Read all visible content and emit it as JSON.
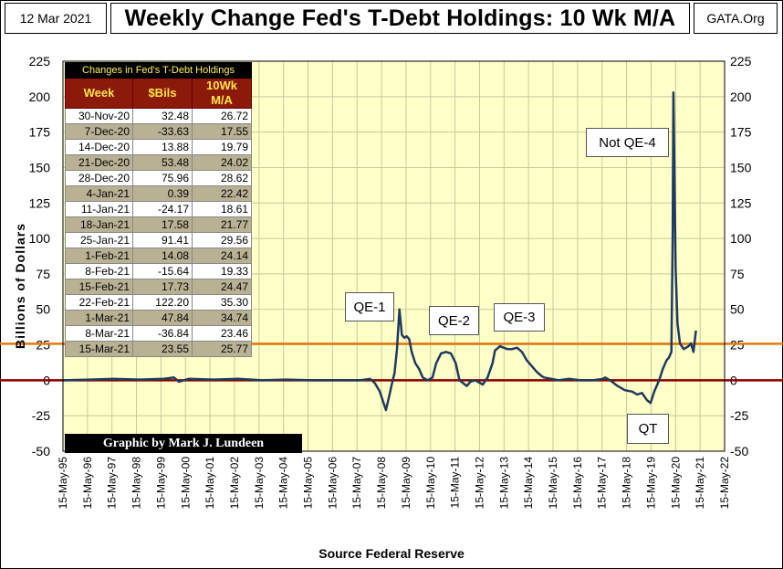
{
  "header": {
    "date": "12 Mar 2021",
    "title": "Weekly Change Fed's T-Debt Holdings: 10 Wk M/A",
    "source_site": "GATA.Org"
  },
  "footer": {
    "source": "Source Federal Reserve",
    "credit": "Graphic by Mark J. Lundeen"
  },
  "table": {
    "caption": "Changes in Fed's T-Debt Holdings",
    "headers": [
      "Week",
      "$Bils",
      "10Wk M/A"
    ],
    "rows": [
      [
        "30-Nov-20",
        "32.48",
        "26.72"
      ],
      [
        "7-Dec-20",
        "-33.63",
        "17.55"
      ],
      [
        "14-Dec-20",
        "13.88",
        "19.79"
      ],
      [
        "21-Dec-20",
        "53.48",
        "24.02"
      ],
      [
        "28-Dec-20",
        "75.96",
        "28.62"
      ],
      [
        "4-Jan-21",
        "0.39",
        "22.42"
      ],
      [
        "11-Jan-21",
        "-24.17",
        "18.61"
      ],
      [
        "18-Jan-21",
        "17.58",
        "21.77"
      ],
      [
        "25-Jan-21",
        "91.41",
        "29.56"
      ],
      [
        "1-Feb-21",
        "14.08",
        "24.14"
      ],
      [
        "8-Feb-21",
        "-15.64",
        "19.33"
      ],
      [
        "15-Feb-21",
        "17.73",
        "24.47"
      ],
      [
        "22-Feb-21",
        "122.20",
        "35.30"
      ],
      [
        "1-Mar-21",
        "47.84",
        "34.74"
      ],
      [
        "8-Mar-21",
        "-36.84",
        "23.46"
      ],
      [
        "15-Mar-21",
        "23.55",
        "25.77"
      ]
    ]
  },
  "colors": {
    "plot_bg": "#ffffc8",
    "grid": "#c8c89a",
    "line": "#1f3a5f",
    "zero_line": "#8b0000",
    "ref_line": "#e07a10"
  },
  "chart_data": {
    "type": "line",
    "title": "Weekly Change Fed's T-Debt Holdings: 10 Wk M/A",
    "xlabel": "Source Federal Reserve",
    "ylabel": "Billions of Dollars",
    "ylim": [
      -50,
      225
    ],
    "yticks": [
      -50,
      -25,
      0,
      25,
      50,
      75,
      100,
      125,
      150,
      175,
      200,
      225
    ],
    "xlim": [
      1995.37,
      2022.37
    ],
    "x_tick_labels": [
      "15-May-95",
      "15-May-96",
      "15-May-97",
      "15-May-98",
      "15-May-99",
      "15-May-00",
      "15-May-01",
      "15-May-02",
      "15-May-03",
      "15-May-04",
      "15-May-05",
      "15-May-06",
      "15-May-07",
      "15-May-08",
      "15-May-09",
      "15-May-10",
      "15-May-11",
      "15-May-12",
      "15-May-13",
      "15-May-14",
      "15-May-15",
      "15-May-16",
      "15-May-17",
      "15-May-18",
      "15-May-19",
      "15-May-20",
      "15-May-21",
      "15-May-22"
    ],
    "reference_lines": [
      {
        "name": "zero",
        "y": 0
      },
      {
        "name": "latest",
        "y": 25.77
      }
    ],
    "series": [
      {
        "name": "10Wk M/A",
        "x": [
          1995.37,
          1996.5,
          1997.5,
          1998.5,
          1999.5,
          1999.9,
          2000.1,
          2000.5,
          2001.5,
          2002.5,
          2003.5,
          2004.5,
          2005.5,
          2006.5,
          2007.5,
          2007.9,
          2008.1,
          2008.3,
          2008.55,
          2008.7,
          2008.8,
          2008.9,
          2009.0,
          2009.1,
          2009.2,
          2009.3,
          2009.4,
          2009.5,
          2009.6,
          2009.75,
          2009.9,
          2010.05,
          2010.25,
          2010.45,
          2010.6,
          2010.8,
          2011.0,
          2011.2,
          2011.4,
          2011.55,
          2011.7,
          2011.85,
          2012.0,
          2012.2,
          2012.5,
          2012.7,
          2012.9,
          2013.0,
          2013.2,
          2013.5,
          2013.7,
          2013.9,
          2014.1,
          2014.3,
          2014.5,
          2014.7,
          2014.9,
          2015.0,
          2015.3,
          2015.6,
          2016.0,
          2016.5,
          2017.0,
          2017.4,
          2017.5,
          2017.7,
          2018.0,
          2018.3,
          2018.6,
          2018.8,
          2019.0,
          2019.2,
          2019.35,
          2019.5,
          2019.7,
          2019.85,
          2020.0,
          2020.1,
          2020.2,
          2020.25,
          2020.28,
          2020.32,
          2020.37,
          2020.45,
          2020.55,
          2020.7,
          2020.9,
          2021.0,
          2021.1,
          2021.2
        ],
        "y": [
          0,
          0.5,
          1,
          0.5,
          1,
          2,
          -1,
          1,
          0.5,
          1,
          0,
          0.5,
          0,
          0,
          0,
          1,
          -2,
          -8,
          -21,
          -10,
          -2,
          5,
          22,
          50,
          32,
          30,
          31,
          29,
          20,
          12,
          8,
          2,
          0,
          2,
          12,
          19,
          20,
          19,
          12,
          0,
          -2,
          -4,
          -1,
          0,
          -3,
          2,
          12,
          21,
          24,
          22,
          22,
          23,
          20,
          14,
          10,
          6,
          3,
          2,
          1,
          0,
          1,
          0,
          0,
          1,
          2,
          0,
          -4,
          -7,
          -8,
          -10,
          -9,
          -14,
          -16,
          -8,
          0,
          8,
          14,
          16,
          20,
          100,
          203,
          150,
          80,
          40,
          26,
          22,
          24,
          26,
          20,
          35
        ]
      }
    ],
    "annotations": [
      {
        "label": "QE-1"
      },
      {
        "label": "QE-2"
      },
      {
        "label": "QE-3"
      },
      {
        "label": "Not QE-4"
      },
      {
        "label": "QT"
      }
    ]
  }
}
